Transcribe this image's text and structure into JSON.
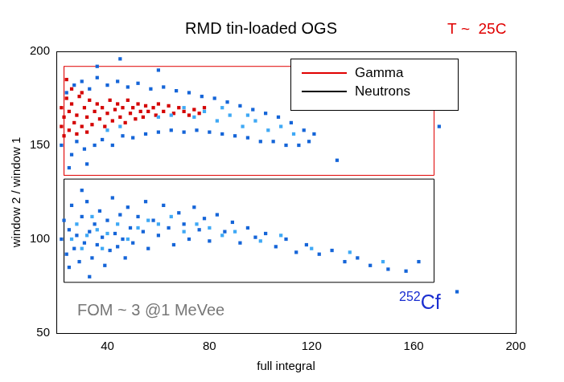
{
  "chart_data": {
    "type": "scatter",
    "title": "RMD tin-loaded OGS",
    "x_label": "full integral",
    "y_label": "window 2 / window 1",
    "xlim": [
      20,
      200
    ],
    "xticks": [
      40,
      80,
      120,
      160,
      200
    ],
    "ylim": [
      50,
      200
    ],
    "yticks": [
      50,
      100,
      150,
      200
    ],
    "grid": false,
    "legend": "top right",
    "series": [
      {
        "name": "Gamma",
        "color": "#e00000",
        "type": "line",
        "box": {
          "x": [
            23,
            168
          ],
          "y": [
            134,
            192
          ]
        }
      },
      {
        "name": "Neutrons",
        "color": "#000000",
        "type": "line",
        "box": {
          "x": [
            23,
            168
          ],
          "y": [
            77,
            132
          ]
        }
      }
    ],
    "density": [
      {
        "color": "#1565d8",
        "points": [
          [
            22,
            150
          ],
          [
            24,
            178
          ],
          [
            26,
            145
          ],
          [
            27,
            182
          ],
          [
            28,
            152
          ],
          [
            30,
            184
          ],
          [
            31,
            148
          ],
          [
            33,
            180
          ],
          [
            35,
            150
          ],
          [
            36,
            186
          ],
          [
            38,
            153
          ],
          [
            40,
            182
          ],
          [
            42,
            150
          ],
          [
            44,
            184
          ],
          [
            46,
            155
          ],
          [
            48,
            181
          ],
          [
            50,
            154
          ],
          [
            52,
            183
          ],
          [
            55,
            156
          ],
          [
            57,
            180
          ],
          [
            60,
            157
          ],
          [
            62,
            181
          ],
          [
            65,
            158
          ],
          [
            67,
            179
          ],
          [
            70,
            157
          ],
          [
            72,
            178
          ],
          [
            75,
            158
          ],
          [
            77,
            176
          ],
          [
            80,
            157
          ],
          [
            82,
            175
          ],
          [
            85,
            156
          ],
          [
            87,
            173
          ],
          [
            90,
            155
          ],
          [
            92,
            171
          ],
          [
            95,
            154
          ],
          [
            97,
            169
          ],
          [
            100,
            152
          ],
          [
            102,
            167
          ],
          [
            105,
            152
          ],
          [
            107,
            165
          ],
          [
            110,
            150
          ],
          [
            112,
            162
          ],
          [
            115,
            150
          ],
          [
            117,
            158
          ],
          [
            119,
            152
          ],
          [
            121,
            156
          ],
          [
            32,
            140
          ],
          [
            25,
            138
          ],
          [
            45,
            196
          ],
          [
            36,
            192
          ],
          [
            60,
            190
          ],
          [
            130,
            142
          ],
          [
            170,
            160
          ],
          [
            22,
            100
          ],
          [
            23,
            110
          ],
          [
            24,
            92
          ],
          [
            25,
            105
          ],
          [
            26,
            118
          ],
          [
            27,
            95
          ],
          [
            28,
            102
          ],
          [
            29,
            88
          ],
          [
            30,
            112
          ],
          [
            31,
            98
          ],
          [
            32,
            120
          ],
          [
            33,
            104
          ],
          [
            34,
            90
          ],
          [
            35,
            108
          ],
          [
            36,
            97
          ],
          [
            37,
            115
          ],
          [
            38,
            101
          ],
          [
            39,
            86
          ],
          [
            40,
            110
          ],
          [
            41,
            94
          ],
          [
            42,
            122
          ],
          [
            43,
            103
          ],
          [
            44,
            96
          ],
          [
            45,
            113
          ],
          [
            46,
            100
          ],
          [
            47,
            90
          ],
          [
            48,
            117
          ],
          [
            49,
            106
          ],
          [
            50,
            98
          ],
          [
            52,
            112
          ],
          [
            54,
            104
          ],
          [
            55,
            120
          ],
          [
            56,
            95
          ],
          [
            58,
            110
          ],
          [
            60,
            102
          ],
          [
            62,
            118
          ],
          [
            64,
            106
          ],
          [
            66,
            97
          ],
          [
            68,
            114
          ],
          [
            70,
            108
          ],
          [
            72,
            100
          ],
          [
            74,
            117
          ],
          [
            76,
            105
          ],
          [
            78,
            111
          ],
          [
            80,
            99
          ],
          [
            83,
            113
          ],
          [
            86,
            104
          ],
          [
            89,
            109
          ],
          [
            92,
            98
          ],
          [
            95,
            106
          ],
          [
            98,
            101
          ],
          [
            102,
            103
          ],
          [
            106,
            96
          ],
          [
            110,
            100
          ],
          [
            114,
            93
          ],
          [
            118,
            97
          ],
          [
            123,
            92
          ],
          [
            128,
            94
          ],
          [
            133,
            88
          ],
          [
            138,
            90
          ],
          [
            143,
            86
          ],
          [
            150,
            84
          ],
          [
            157,
            83
          ],
          [
            162,
            88
          ],
          [
            33,
            80
          ],
          [
            30,
            126
          ],
          [
            25,
            85
          ],
          [
            177,
            72
          ]
        ]
      },
      {
        "color": "#3fa9f5",
        "points": [
          [
            60,
            165
          ],
          [
            65,
            166
          ],
          [
            70,
            170
          ],
          [
            74,
            165
          ],
          [
            78,
            168
          ],
          [
            83,
            163
          ],
          [
            88,
            166
          ],
          [
            93,
            160
          ],
          [
            98,
            163
          ],
          [
            103,
            158
          ],
          [
            108,
            160
          ],
          [
            113,
            156
          ],
          [
            85,
            170
          ],
          [
            95,
            166
          ],
          [
            45,
            160
          ],
          [
            40,
            158
          ],
          [
            26,
            100
          ],
          [
            28,
            108
          ],
          [
            30,
            95
          ],
          [
            32,
            102
          ],
          [
            34,
            112
          ],
          [
            36,
            105
          ],
          [
            38,
            95
          ],
          [
            40,
            103
          ],
          [
            44,
            108
          ],
          [
            48,
            100
          ],
          [
            52,
            106
          ],
          [
            56,
            110
          ],
          [
            60,
            108
          ],
          [
            65,
            112
          ],
          [
            70,
            104
          ],
          [
            75,
            108
          ],
          [
            80,
            106
          ],
          [
            85,
            102
          ],
          [
            90,
            104
          ],
          [
            100,
            99
          ],
          [
            108,
            102
          ],
          [
            120,
            95
          ],
          [
            135,
            93
          ],
          [
            148,
            88
          ]
        ]
      },
      {
        "color": "#d40000",
        "points": [
          [
            22,
            160
          ],
          [
            22,
            170
          ],
          [
            23,
            165
          ],
          [
            24,
            175
          ],
          [
            25,
            158
          ],
          [
            25,
            168
          ],
          [
            26,
            172
          ],
          [
            27,
            162
          ],
          [
            28,
            166
          ],
          [
            29,
            176
          ],
          [
            30,
            160
          ],
          [
            31,
            170
          ],
          [
            32,
            165
          ],
          [
            33,
            174
          ],
          [
            34,
            161
          ],
          [
            35,
            168
          ],
          [
            36,
            172
          ],
          [
            37,
            164
          ],
          [
            38,
            170
          ],
          [
            39,
            160
          ],
          [
            40,
            167
          ],
          [
            41,
            174
          ],
          [
            42,
            163
          ],
          [
            43,
            169
          ],
          [
            44,
            172
          ],
          [
            45,
            165
          ],
          [
            46,
            170
          ],
          [
            47,
            162
          ],
          [
            48,
            174
          ],
          [
            49,
            167
          ],
          [
            50,
            170
          ],
          [
            51,
            164
          ],
          [
            52,
            172
          ],
          [
            53,
            168
          ],
          [
            54,
            165
          ],
          [
            55,
            171
          ],
          [
            56,
            168
          ],
          [
            58,
            170
          ],
          [
            59,
            166
          ],
          [
            60,
            172
          ],
          [
            62,
            168
          ],
          [
            64,
            171
          ],
          [
            66,
            167
          ],
          [
            68,
            170
          ],
          [
            70,
            168
          ],
          [
            72,
            166
          ],
          [
            74,
            169
          ],
          [
            76,
            167
          ],
          [
            78,
            170
          ],
          [
            23,
            155
          ],
          [
            24,
            185
          ],
          [
            26,
            180
          ],
          [
            28,
            156
          ],
          [
            30,
            178
          ],
          [
            32,
            157
          ]
        ]
      }
    ],
    "annotations": [
      {
        "text": "T ~  25C",
        "color": "#e00000"
      },
      {
        "text": "FOM ~ 3 @1 MeVee",
        "color": "#777777"
      },
      {
        "text": "Cf",
        "superscript": "252",
        "color": "#1a2ed0"
      }
    ]
  }
}
